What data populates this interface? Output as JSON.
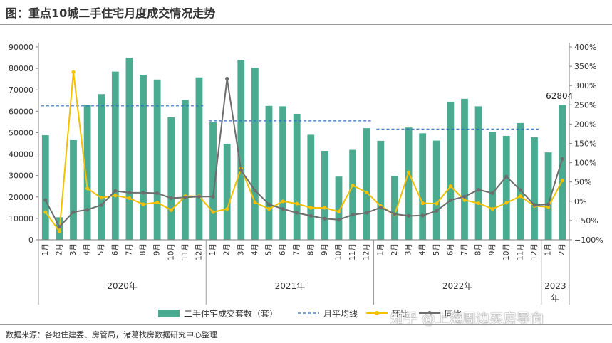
{
  "title": "图：重点10城二手住宅月度成交情况走势",
  "source": "数据来源：各地住建委、房管局，诸葛找房数据研究中心整理",
  "watermark": "知乎 @上海周边买房导向",
  "chart_data": {
    "type": "bar",
    "months": [
      "1月",
      "2月",
      "3月",
      "4月",
      "5月",
      "6月",
      "7月",
      "8月",
      "9月",
      "10月",
      "11月",
      "12月",
      "1月",
      "2月",
      "3月",
      "4月",
      "5月",
      "6月",
      "7月",
      "8月",
      "9月",
      "10月",
      "11月",
      "12月",
      "1月",
      "2月",
      "3月",
      "4月",
      "5月",
      "6月",
      "7月",
      "8月",
      "9月",
      "10月",
      "11月",
      "12月",
      "1月",
      "2月"
    ],
    "year_groups": [
      {
        "label": "2020年",
        "span": 12
      },
      {
        "label": "2021年",
        "span": 12
      },
      {
        "label": "2022年",
        "span": 12
      },
      {
        "label": "2023年",
        "span": 2
      }
    ],
    "y_left": {
      "min": 0,
      "max": 90000,
      "step": 10000,
      "ticks": [
        "0",
        "10000",
        "20000",
        "30000",
        "40000",
        "50000",
        "60000",
        "70000",
        "80000",
        "90000"
      ]
    },
    "y_right": {
      "min": -100,
      "max": 400,
      "step": 50,
      "ticks": [
        "−100%",
        "−50%",
        "0%",
        "50%",
        "100%",
        "150%",
        "200%",
        "250%",
        "300%",
        "350%",
        "400%"
      ]
    },
    "series": [
      {
        "name": "二手住宅成交套数（套）",
        "kind": "bar",
        "color": "#4aab90",
        "values": [
          48800,
          10500,
          46500,
          62800,
          68000,
          78500,
          85000,
          77000,
          74800,
          57200,
          65300,
          75800,
          54800,
          44800,
          84000,
          80300,
          62500,
          62300,
          58800,
          49000,
          41500,
          29500,
          42000,
          52100,
          46200,
          29800,
          52400,
          49700,
          46300,
          64300,
          65800,
          62300,
          50400,
          48500,
          54500,
          47800,
          40800,
          62804
        ]
      },
      {
        "name": "月平均线",
        "kind": "segments",
        "color": "#2e6fbf",
        "segments": [
          {
            "start": 0,
            "end": 11,
            "value": 62500
          },
          {
            "start": 12,
            "end": 23,
            "value": 55500
          },
          {
            "start": 24,
            "end": 35,
            "value": 51700
          }
        ]
      },
      {
        "name": "环比",
        "kind": "line",
        "color": "#f5c000",
        "values": [
          -28,
          -78,
          335,
          33,
          9,
          15,
          8,
          -8,
          -3,
          -23,
          13,
          13,
          -28,
          -20,
          85,
          -3,
          -20,
          0,
          -6,
          -17,
          -17,
          -27,
          41,
          23,
          -12,
          -35,
          75,
          -5,
          -6,
          39,
          3,
          -5,
          -20,
          -4,
          13,
          -12,
          -15,
          54
        ]
      },
      {
        "name": "同比",
        "kind": "line",
        "color": "#6d6d6d",
        "values": [
          3,
          -66,
          -28,
          -22,
          -10,
          27,
          22,
          22,
          21,
          8,
          10,
          12,
          12,
          318,
          80,
          28,
          -8,
          -20,
          -30,
          -38,
          -45,
          -48,
          -35,
          -30,
          -16,
          -33,
          -38,
          -37,
          -25,
          3,
          12,
          30,
          21,
          64,
          29,
          -10,
          -8,
          110
        ]
      }
    ],
    "annotations": [
      {
        "label": "62804",
        "index": 37
      }
    ],
    "legend_position": "bottom"
  }
}
